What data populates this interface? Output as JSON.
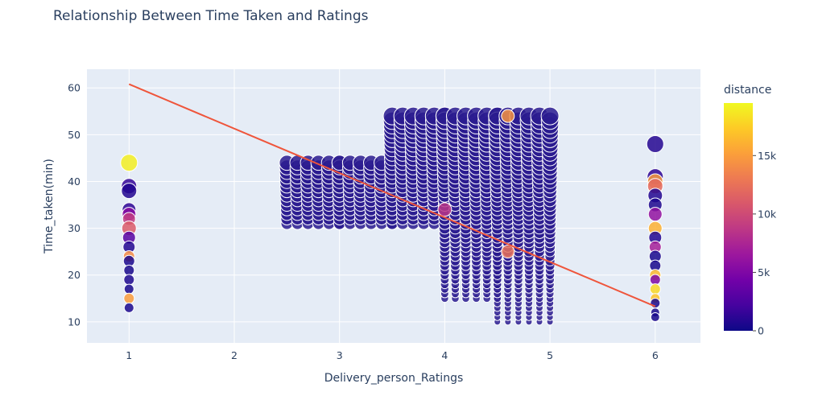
{
  "chart_data": {
    "type": "scatter",
    "title": "Relationship Between Time Taken and Ratings",
    "xlabel": "Delivery_person_Ratings",
    "ylabel": "Time_taken(min)",
    "xlim": [
      0.6,
      6.43
    ],
    "ylim": [
      5.5,
      64
    ],
    "x_ticks": [
      "1",
      "2",
      "3",
      "4",
      "5",
      "6"
    ],
    "y_ticks": [
      "10",
      "20",
      "30",
      "40",
      "50",
      "60"
    ],
    "grid": true,
    "colorbar": {
      "title": "distance",
      "range": [
        0,
        19500
      ],
      "tick_labels": [
        "0",
        "5k",
        "10k",
        "15k"
      ],
      "tick_values": [
        0,
        5000,
        10000,
        15000
      ],
      "colorscale": [
        "#0d0887",
        "#46039f",
        "#7201a8",
        "#9c179e",
        "#bd3786",
        "#d8576b",
        "#ed7953",
        "#fb9f3a",
        "#fdca26",
        "#f0f921"
      ]
    },
    "trendline": {
      "x": [
        1,
        6
      ],
      "y": [
        60.8,
        13.3
      ],
      "color": "#ef553b"
    },
    "marker_color_default": "#2a1b8f",
    "regions": [
      {
        "x_range": [
          2.5,
          3.0
        ],
        "y_range": [
          31,
          44
        ]
      },
      {
        "x_range": [
          3.0,
          3.5
        ],
        "y_range": [
          31,
          44
        ]
      },
      {
        "x_range": [
          3.5,
          4.0
        ],
        "y_range": [
          31,
          54
        ]
      },
      {
        "x_range": [
          4.0,
          4.5
        ],
        "y_range": [
          15,
          54
        ]
      },
      {
        "x_range": [
          4.5,
          5.0
        ],
        "y_range": [
          10,
          54
        ]
      }
    ],
    "points": [
      {
        "x": 1,
        "y": 44,
        "distance": 19000,
        "size": 17
      },
      {
        "x": 1,
        "y": 39,
        "distance": 1500,
        "size": 15
      },
      {
        "x": 1,
        "y": 38,
        "distance": 800,
        "size": 15
      },
      {
        "x": 1,
        "y": 34,
        "distance": 1200,
        "size": 13
      },
      {
        "x": 1,
        "y": 33,
        "distance": 5500,
        "size": 13
      },
      {
        "x": 1,
        "y": 32,
        "distance": 9000,
        "size": 12
      },
      {
        "x": 1,
        "y": 30,
        "distance": 11000,
        "size": 14
      },
      {
        "x": 1,
        "y": 28,
        "distance": 3000,
        "size": 12
      },
      {
        "x": 1,
        "y": 26,
        "distance": 800,
        "size": 11
      },
      {
        "x": 1,
        "y": 24,
        "distance": 14000,
        "size": 10
      },
      {
        "x": 1,
        "y": 23,
        "distance": 500,
        "size": 10
      },
      {
        "x": 1,
        "y": 21,
        "distance": 400,
        "size": 9
      },
      {
        "x": 1,
        "y": 19,
        "distance": 600,
        "size": 9
      },
      {
        "x": 1,
        "y": 17,
        "distance": 400,
        "size": 8
      },
      {
        "x": 1,
        "y": 15,
        "distance": 15000,
        "size": 9
      },
      {
        "x": 1,
        "y": 13,
        "distance": 500,
        "size": 8
      },
      {
        "x": 6,
        "y": 48,
        "distance": 900,
        "size": 17
      },
      {
        "x": 6,
        "y": 41,
        "distance": 1200,
        "size": 16
      },
      {
        "x": 6,
        "y": 40,
        "distance": 15000,
        "size": 15
      },
      {
        "x": 6,
        "y": 39,
        "distance": 12000,
        "size": 15
      },
      {
        "x": 6,
        "y": 37,
        "distance": 800,
        "size": 14
      },
      {
        "x": 6,
        "y": 35,
        "distance": 600,
        "size": 13
      },
      {
        "x": 6,
        "y": 33,
        "distance": 6000,
        "size": 13
      },
      {
        "x": 6,
        "y": 30,
        "distance": 16000,
        "size": 13
      },
      {
        "x": 6,
        "y": 28,
        "distance": 800,
        "size": 12
      },
      {
        "x": 6,
        "y": 26,
        "distance": 7000,
        "size": 11
      },
      {
        "x": 6,
        "y": 24,
        "distance": 500,
        "size": 11
      },
      {
        "x": 6,
        "y": 22,
        "distance": 400,
        "size": 10
      },
      {
        "x": 6,
        "y": 20,
        "distance": 16500,
        "size": 10
      },
      {
        "x": 6,
        "y": 19,
        "distance": 5000,
        "size": 9
      },
      {
        "x": 6,
        "y": 17,
        "distance": 18000,
        "size": 9
      },
      {
        "x": 6,
        "y": 15,
        "distance": 17000,
        "size": 8
      },
      {
        "x": 6,
        "y": 14,
        "distance": 500,
        "size": 8
      },
      {
        "x": 6,
        "y": 12,
        "distance": 400,
        "size": 7
      },
      {
        "x": 6,
        "y": 11,
        "distance": 400,
        "size": 7
      },
      {
        "x": 4.0,
        "y": 34,
        "distance": 8500,
        "size": 13
      },
      {
        "x": 4.6,
        "y": 54,
        "distance": 14500,
        "size": 12
      },
      {
        "x": 4.6,
        "y": 25,
        "distance": 12500,
        "size": 12
      }
    ]
  }
}
